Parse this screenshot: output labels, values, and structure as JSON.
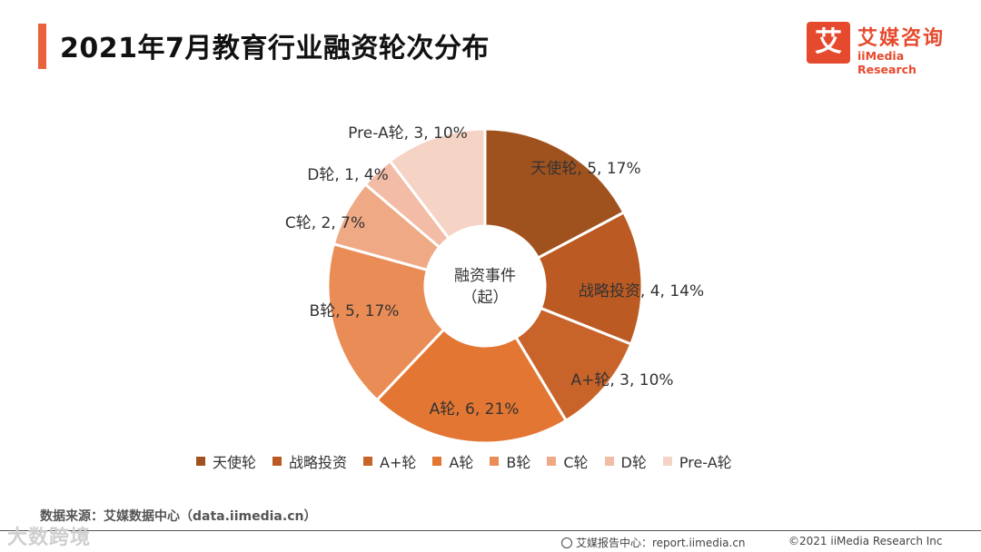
{
  "page": {
    "title": "2021年7月教育行业融资轮次分布",
    "source": "数据来源：艾媒数据中心（data.iimedia.cn）",
    "watermark": "大数跨境",
    "footer_report": "艾媒报告中心：report.iimedia.cn",
    "footer_copyright": "©2021  iiMedia Research  Inc"
  },
  "logo": {
    "mark": "艾",
    "cn": "艾媒咨询",
    "en": "iiMedia Research"
  },
  "colors": {
    "accent": "#e8623c",
    "brand": "#e64a2e",
    "slices": [
      "#a0521e",
      "#bb5a22",
      "#c8632a",
      "#e27632",
      "#ea8c56",
      "#efa985",
      "#f3bca6",
      "#f5d3c5"
    ]
  },
  "chart_data": {
    "type": "pie",
    "title": "",
    "center_label": [
      "融资事件",
      "（起）"
    ],
    "categories": [
      "天使轮",
      "战略投资",
      "A+轮",
      "A轮",
      "B轮",
      "C轮",
      "D轮",
      "Pre-A轮"
    ],
    "values": [
      5,
      4,
      3,
      6,
      5,
      2,
      1,
      3
    ],
    "percents": [
      17,
      14,
      10,
      21,
      17,
      7,
      4,
      10
    ],
    "data_labels": [
      "天使轮, 5, 17%",
      "战略投资, 4, 14%",
      "A+轮, 3, 10%",
      "A轮, 6, 21%",
      "B轮, 5, 17%",
      "C轮, 2, 7%",
      "D轮, 1, 4%",
      "Pre-A轮, 3, 10%"
    ],
    "legend_position": "bottom",
    "donut": true
  }
}
